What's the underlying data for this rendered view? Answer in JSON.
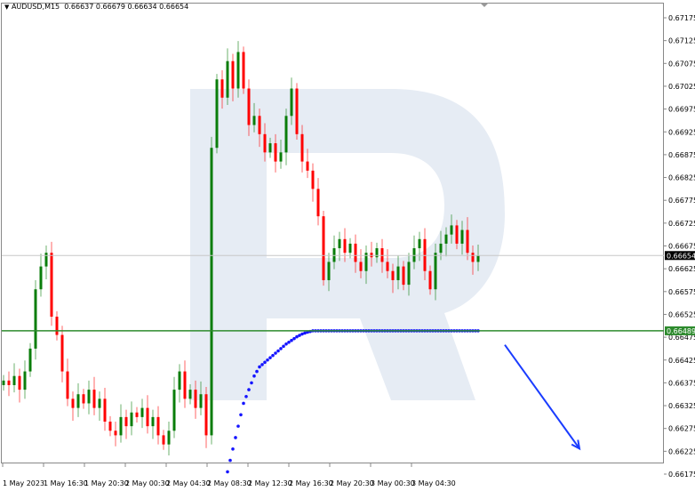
{
  "header": {
    "symbol": "AUDUSD,M15",
    "ohlc": "0.66637 0.66679 0.66634 0.66654"
  },
  "chart_data": {
    "type": "candlestick",
    "symbol": "AUDUSD",
    "timeframe": "M15",
    "ylim": [
      0.66175,
      0.67175
    ],
    "y_ticks": [
      "0.67175",
      "0.67125",
      "0.67075",
      "0.67025",
      "0.66975",
      "0.66925",
      "0.66875",
      "0.66825",
      "0.66775",
      "0.66725",
      "0.66675",
      "0.66625",
      "0.66575",
      "0.66525",
      "0.66475",
      "0.66425",
      "0.66375",
      "0.66325",
      "0.66275",
      "0.66225",
      "0.66175"
    ],
    "x_ticks": [
      "1 May 2023",
      "1 May 16:30",
      "1 May 20:30",
      "2 May 00:30",
      "2 May 04:30",
      "2 May 08:30",
      "2 May 12:30",
      "2 May 16:30",
      "2 May 20:30",
      "3 May 00:30",
      "3 May 04:30"
    ],
    "first_open": 0.6637,
    "closes": [
      0.6638,
      0.6637,
      0.6639,
      0.6636,
      0.664,
      0.6645,
      0.6658,
      0.6663,
      0.6666,
      0.6652,
      0.6648,
      0.664,
      0.6634,
      0.6632,
      0.6635,
      0.6633,
      0.6636,
      0.6632,
      0.6634,
      0.6629,
      0.6627,
      0.6626,
      0.663,
      0.6628,
      0.6631,
      0.663,
      0.6632,
      0.6628,
      0.663,
      0.6626,
      0.6624,
      0.6627,
      0.6636,
      0.664,
      0.6634,
      0.6636,
      0.6632,
      0.6635,
      0.6626,
      0.6689,
      0.6704,
      0.67,
      0.6708,
      0.6702,
      0.671,
      0.6702,
      0.6694,
      0.6696,
      0.6692,
      0.6688,
      0.669,
      0.6686,
      0.6688,
      0.6696,
      0.6702,
      0.6692,
      0.6686,
      0.6684,
      0.668,
      0.6674,
      0.666,
      0.6664,
      0.6667,
      0.6669,
      0.6666,
      0.6668,
      0.6664,
      0.6662,
      0.6666,
      0.6665,
      0.6667,
      0.6664,
      0.6662,
      0.666,
      0.6663,
      0.6659,
      0.6664,
      0.6667,
      0.6669,
      0.6662,
      0.6658,
      0.6666,
      0.6668,
      0.667,
      0.6672,
      0.6668,
      0.6671,
      0.6666,
      0.6664,
      0.66654
    ],
    "indicator_start_index": 42,
    "indicator_values": [
      0.6618,
      0.6623,
      0.6628,
      0.6633,
      0.6636,
      0.6639,
      0.6641,
      0.6642,
      0.6643,
      0.6644,
      0.6645,
      0.6646,
      0.66468,
      0.66476,
      0.66482,
      0.66486,
      0.66489
    ],
    "current_price": "0.66654",
    "level_price": "0.66489",
    "forecast_arrow": {
      "from_price": 0.6647,
      "to_price": 0.66225,
      "direction": "down"
    },
    "colors": {
      "bull": "#0a7d0a",
      "bear": "#ff0000",
      "level": "#2e8b2e",
      "indicator": "#1515ff",
      "arrow": "#1a3cff",
      "watermark": "#e6ecf4"
    }
  }
}
